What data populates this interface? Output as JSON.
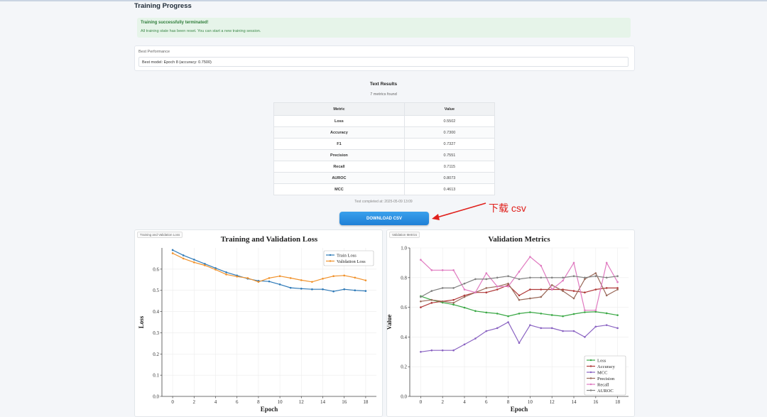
{
  "page_title": "Training Progress",
  "alert": {
    "title": "Training successfully terminated!",
    "message": "All training state has been reset. You can start a new training session."
  },
  "best": {
    "label": "Best Performance",
    "value": "Best model: Epoch 8 (accuracy: 0.7500)"
  },
  "results": {
    "title": "Text Results",
    "subtitle": "7 metrics found",
    "headers": [
      "Metric",
      "Value"
    ],
    "rows": [
      {
        "metric": "Loss",
        "value": "0.5502"
      },
      {
        "metric": "Accuracy",
        "value": "0.7300"
      },
      {
        "metric": "F1",
        "value": "0.7327"
      },
      {
        "metric": "Precision",
        "value": "0.7551"
      },
      {
        "metric": "Recall",
        "value": "0.7115"
      },
      {
        "metric": "AUROC",
        "value": "0.8073"
      },
      {
        "metric": "MCC",
        "value": "0.4613"
      }
    ],
    "footnote": "Test completed at: 2025-05-09 13:09"
  },
  "download_label": "DOWNLOAD CSV",
  "annotation_text": "下载 csv",
  "colors": {
    "accent": "#1f7fd6",
    "annotation": "#e0201c"
  },
  "chart_data": [
    {
      "type": "line",
      "tab_label": "Training and Validation Loss",
      "title": "Training and Validation Loss",
      "xlabel": "Epoch",
      "ylabel": "Loss",
      "xlim": [
        -1,
        19
      ],
      "ylim": [
        0,
        0.7
      ],
      "xticks": [
        0,
        2,
        4,
        6,
        8,
        10,
        12,
        14,
        16,
        18
      ],
      "yticks": [
        0.0,
        0.1,
        0.2,
        0.3,
        0.4,
        0.5,
        0.6
      ],
      "grid": true,
      "legend": "top-right",
      "x": [
        0,
        1,
        2,
        3,
        4,
        5,
        6,
        7,
        8,
        9,
        10,
        11,
        12,
        13,
        14,
        15,
        16,
        17,
        18
      ],
      "series": [
        {
          "name": "Train Loss",
          "color": "#2f7ab8",
          "values": [
            0.69,
            0.665,
            0.645,
            0.625,
            0.605,
            0.585,
            0.57,
            0.555,
            0.545,
            0.542,
            0.528,
            0.512,
            0.508,
            0.505,
            0.505,
            0.495,
            0.505,
            0.5,
            0.497
          ]
        },
        {
          "name": "Validation Loss",
          "color": "#f0912a",
          "values": [
            0.675,
            0.65,
            0.632,
            0.618,
            0.598,
            0.575,
            0.565,
            0.558,
            0.54,
            0.558,
            0.567,
            0.558,
            0.548,
            0.54,
            0.555,
            0.567,
            0.57,
            0.56,
            0.547
          ]
        }
      ]
    },
    {
      "type": "line",
      "tab_label": "Validation Metrics",
      "title": "Validation Metrics",
      "xlabel": "Epoch",
      "ylabel": "Value",
      "xlim": [
        -1,
        19
      ],
      "ylim": [
        0,
        1.0
      ],
      "xticks": [
        0,
        2,
        4,
        6,
        8,
        10,
        12,
        14,
        16,
        18
      ],
      "yticks": [
        0.0,
        0.2,
        0.4,
        0.6,
        0.8,
        1.0
      ],
      "grid": true,
      "legend": "bottom-right",
      "x": [
        0,
        1,
        2,
        3,
        4,
        5,
        6,
        7,
        8,
        9,
        10,
        11,
        12,
        13,
        14,
        15,
        16,
        17,
        18
      ],
      "series": [
        {
          "name": "Loss",
          "color": "#3aa845",
          "values": [
            0.675,
            0.65,
            0.632,
            0.618,
            0.598,
            0.575,
            0.565,
            0.558,
            0.54,
            0.558,
            0.567,
            0.558,
            0.548,
            0.54,
            0.555,
            0.567,
            0.57,
            0.56,
            0.547
          ]
        },
        {
          "name": "Accuracy",
          "color": "#b03a3a",
          "values": [
            0.6,
            0.63,
            0.64,
            0.65,
            0.68,
            0.7,
            0.7,
            0.72,
            0.75,
            0.68,
            0.72,
            0.72,
            0.72,
            0.72,
            0.71,
            0.7,
            0.72,
            0.73,
            0.73
          ]
        },
        {
          "name": "MCC",
          "color": "#8a63c2",
          "values": [
            0.3,
            0.31,
            0.31,
            0.31,
            0.35,
            0.39,
            0.44,
            0.46,
            0.5,
            0.36,
            0.48,
            0.46,
            0.46,
            0.44,
            0.44,
            0.4,
            0.47,
            0.48,
            0.46
          ]
        },
        {
          "name": "Precision",
          "color": "#9a6a5a",
          "values": [
            0.64,
            0.65,
            0.64,
            0.63,
            0.67,
            0.7,
            0.73,
            0.74,
            0.76,
            0.65,
            0.66,
            0.67,
            0.75,
            0.71,
            0.66,
            0.79,
            0.83,
            0.68,
            0.72
          ]
        },
        {
          "name": "Recall",
          "color": "#e07ac0",
          "values": [
            0.92,
            0.85,
            0.85,
            0.85,
            0.72,
            0.7,
            0.83,
            0.74,
            0.74,
            0.84,
            0.94,
            0.88,
            0.72,
            0.78,
            0.9,
            0.58,
            0.58,
            0.9,
            0.77
          ]
        },
        {
          "name": "AUROC",
          "color": "#808080",
          "values": [
            0.67,
            0.71,
            0.73,
            0.73,
            0.76,
            0.79,
            0.79,
            0.8,
            0.81,
            0.79,
            0.8,
            0.8,
            0.8,
            0.8,
            0.81,
            0.8,
            0.81,
            0.8,
            0.81
          ]
        }
      ]
    }
  ]
}
